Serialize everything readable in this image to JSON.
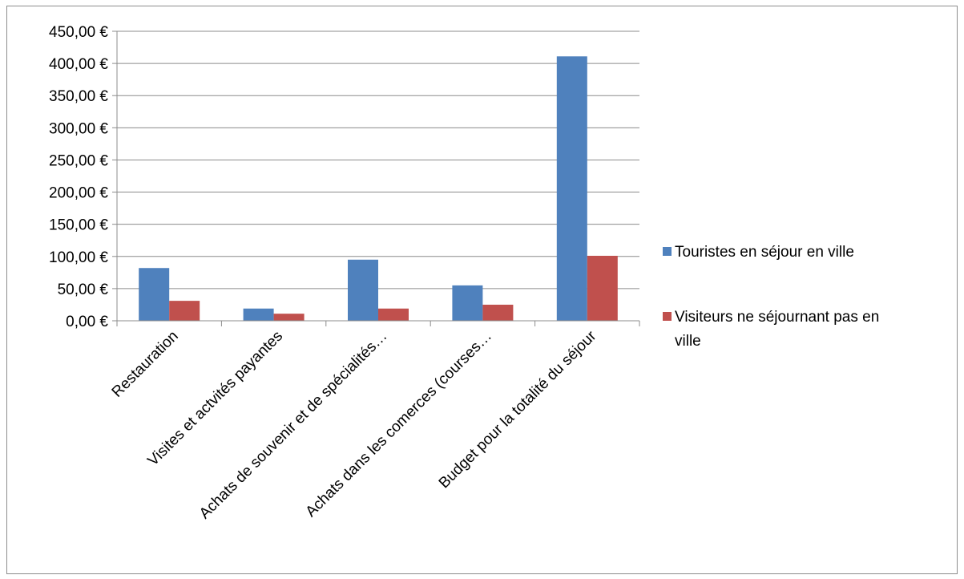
{
  "chart_data": {
    "type": "bar",
    "categories": [
      "Restauration",
      "Visites et actvités payantes",
      "Achats de souvenir et de spécialités…",
      "Achats dans les comerces (courses…",
      "Budget pour la totalité du séjour"
    ],
    "series": [
      {
        "name": "Touristes en séjour en ville",
        "color": "#4F81BD",
        "values": [
          82,
          19,
          95,
          55,
          411
        ]
      },
      {
        "name": "Visiteurs ne séjournant pas en ville",
        "color": "#C0504D",
        "values": [
          31,
          11,
          19,
          25,
          101
        ]
      }
    ],
    "y_ticks": [
      "0,00 €",
      "50,00 €",
      "100,00 €",
      "150,00 €",
      "200,00 €",
      "250,00 €",
      "300,00 €",
      "350,00 €",
      "400,00 €",
      "450,00 €"
    ],
    "ylim": [
      0,
      450
    ],
    "y_step": 50,
    "grid": true,
    "legend_position": "right",
    "title": "",
    "xlabel": "",
    "ylabel": ""
  }
}
